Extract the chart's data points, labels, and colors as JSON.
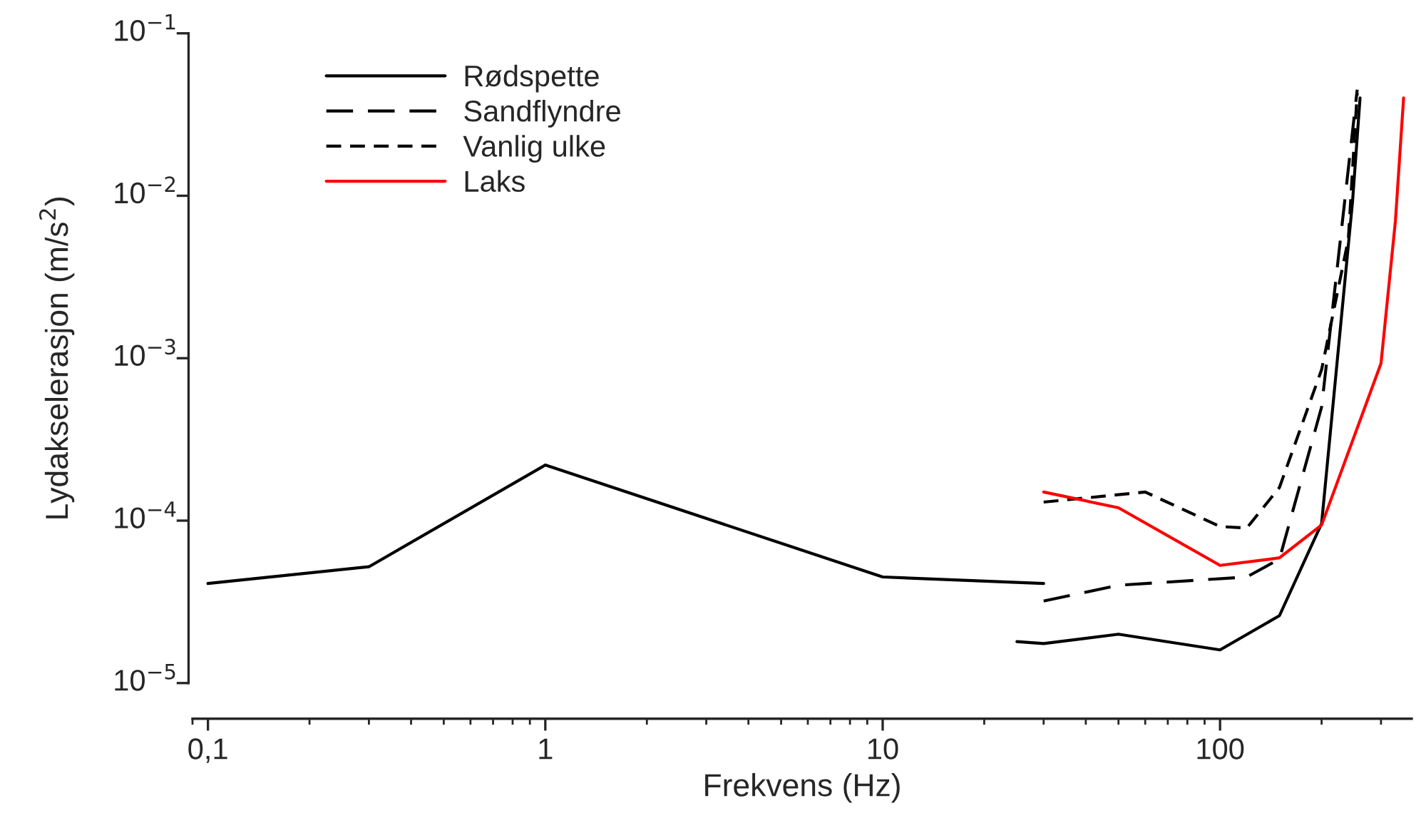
{
  "chart_data": {
    "type": "line",
    "xlabel": "Frekvens (Hz)",
    "ylabel": "Lydakselerasjon (m/s$^{2}$)",
    "log": "xy",
    "xlim": [
      0.09,
      370
    ],
    "xticks": [
      {
        "value": 0.1,
        "label": "0,1"
      },
      1,
      10,
      100
    ],
    "ylim": [
      1e-05,
      0.1
    ],
    "yticks": [
      {
        "value": 1e-05,
        "label": "10$^{−5}$"
      },
      {
        "value": 0.0001,
        "label": "10$^{−4}$"
      },
      {
        "value": 0.001,
        "label": "10$^{−3}$"
      },
      {
        "value": 0.01,
        "label": "10$^{−2}$"
      },
      {
        "value": 0.1,
        "label": "10$^{−1}$"
      }
    ],
    "grid": false,
    "legend": "top left",
    "marker": "none",
    "series": [
      {
        "name": "Rødspette",
        "color": "#000000",
        "line_style": "solid",
        "x": [
          0.1,
          0.3,
          1,
          10,
          30
        ],
        "values": [
          4.1e-05,
          5.2e-05,
          0.00022,
          4.5e-05,
          4.1e-05
        ]
      },
      {
        "color": "#000000",
        "line_style": "solid",
        "x": [
          25,
          30,
          50,
          100,
          150,
          200,
          247,
          260
        ],
        "values": [
          1.8e-05,
          1.75e-05,
          2e-05,
          1.6e-05,
          2.6e-05,
          9.6e-05,
          0.0092,
          0.04
        ]
      },
      {
        "name": "Sandflyndre",
        "color": "#000000",
        "line_style": "dashed",
        "x": [
          30,
          50,
          120,
          150,
          200,
          255
        ],
        "values": [
          3.2e-05,
          4e-05,
          4.5e-05,
          5.8e-05,
          0.0005,
          0.045
        ]
      },
      {
        "name": "Vanlig ulke",
        "color": "#000000",
        "line_style": "dashed",
        "x": [
          30,
          60,
          100,
          120,
          150,
          200,
          240,
          255
        ],
        "values": [
          0.00013,
          0.00015,
          9.2e-05,
          9e-05,
          0.00016,
          0.00085,
          0.0054,
          0.043
        ]
      },
      {
        "name": "Laks",
        "color": "#ff0000",
        "line_style": "solid",
        "x": [
          30,
          50,
          100,
          150,
          200,
          300,
          331,
          350
        ],
        "values": [
          0.00015,
          0.00012,
          5.3e-05,
          5.9e-05,
          9.4e-05,
          0.00093,
          0.007,
          0.04
        ]
      }
    ]
  }
}
